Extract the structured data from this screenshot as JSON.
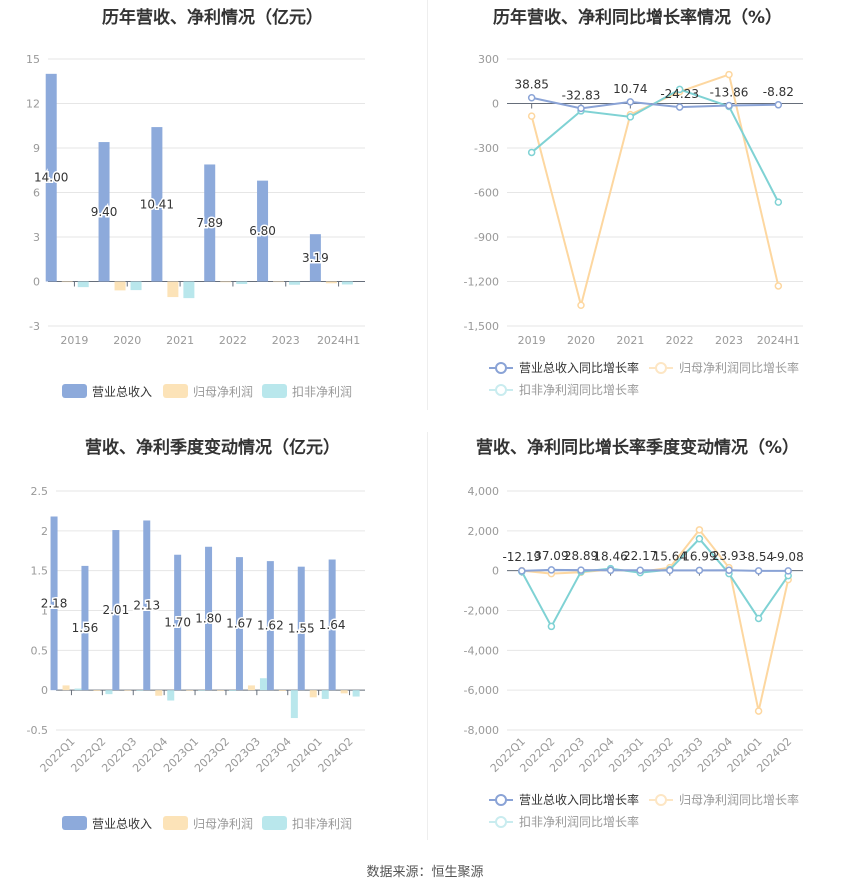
{
  "source": "数据来源：恒生聚源",
  "colors": {
    "revenue": "#8daadb",
    "net_profit": "#fce3b8",
    "deducted_profit": "#b9e7ec",
    "revenue_line": "#8aa3d6",
    "net_profit_line": "#fdd7a0",
    "deducted_profit_line": "#7fd2d4",
    "grid": "#e6e6e6",
    "axis_text": "#999999",
    "title": "#333333"
  },
  "chart_data": [
    {
      "id": "annual_amount",
      "type": "bar",
      "title": "历年营收、净利情况（亿元）",
      "xlabel": "",
      "ylabel": "",
      "categories": [
        "2019",
        "2020",
        "2021",
        "2022",
        "2023",
        "2024H1"
      ],
      "yticks": [
        "15",
        "12",
        "9",
        "6",
        "3",
        "0",
        "-3"
      ],
      "ylim": [
        -3,
        15
      ],
      "grid": true,
      "legend_position": "bottom",
      "series": [
        {
          "name": "营业总收入",
          "values": [
            14.0,
            9.4,
            10.41,
            7.89,
            6.8,
            3.19
          ],
          "labels": [
            "14.00",
            "9.40",
            "10.41",
            "7.89",
            "6.80",
            "3.19"
          ]
        },
        {
          "name": "归母净利润",
          "values": [
            -0.02,
            -0.6,
            -1.05,
            -0.05,
            -0.04,
            -0.12
          ]
        },
        {
          "name": "扣非净利润",
          "values": [
            -0.38,
            -0.58,
            -1.12,
            -0.17,
            -0.22,
            -0.2
          ]
        }
      ]
    },
    {
      "id": "annual_growth",
      "type": "line",
      "title": "历年营收、净利同比增长率情况（%）",
      "xlabel": "",
      "ylabel": "",
      "categories": [
        "2019",
        "2020",
        "2021",
        "2022",
        "2023",
        "2024H1"
      ],
      "yticks": [
        "300",
        "0",
        "-300",
        "-600",
        "-900",
        "-1,200",
        "-1,500"
      ],
      "ylim": [
        -1500,
        300
      ],
      "grid": true,
      "legend_position": "bottom",
      "series": [
        {
          "name": "营业总收入同比增长率",
          "values": [
            38.85,
            -32.83,
            10.74,
            -24.23,
            -13.86,
            -8.82
          ],
          "labels": [
            "38.85",
            "-32.83",
            "10.74",
            "-24.23",
            "-13.86",
            "-8.82"
          ]
        },
        {
          "name": "归母净利润同比增长率",
          "values": [
            -85,
            -1360,
            -75,
            80,
            195,
            -1230
          ]
        },
        {
          "name": "扣非净利润同比增长率",
          "values": [
            -330,
            -50,
            -90,
            95,
            -20,
            -665
          ]
        }
      ]
    },
    {
      "id": "quarterly_amount",
      "type": "bar",
      "title": "营收、净利季度变动情况（亿元）",
      "xlabel": "",
      "ylabel": "",
      "categories": [
        "2022Q1",
        "2022Q2",
        "2022Q3",
        "2022Q4",
        "2023Q1",
        "2023Q2",
        "2023Q3",
        "2023Q4",
        "2024Q1",
        "2024Q2"
      ],
      "yticks": [
        "2.5",
        "2",
        "1.5",
        "1",
        "0.5",
        "0",
        "-0.5"
      ],
      "ylim": [
        -0.5,
        2.5
      ],
      "grid": true,
      "legend_position": "bottom",
      "series": [
        {
          "name": "营业总收入",
          "values": [
            2.18,
            1.56,
            2.01,
            2.13,
            1.7,
            1.8,
            1.67,
            1.62,
            1.55,
            1.64
          ],
          "labels": [
            "2.18",
            "1.56",
            "2.01",
            "2.13",
            "1.70",
            "1.80",
            "1.67",
            "1.62",
            "1.55",
            "1.64"
          ]
        },
        {
          "name": "归母净利润",
          "values": [
            0.06,
            -0.01,
            0.0,
            -0.07,
            0.0,
            0.0,
            0.06,
            -0.01,
            -0.09,
            -0.04
          ]
        },
        {
          "name": "扣非净利润",
          "values": [
            0.02,
            -0.05,
            0.0,
            -0.13,
            0.0,
            -0.01,
            0.15,
            -0.35,
            -0.11,
            -0.08
          ]
        }
      ]
    },
    {
      "id": "quarterly_growth",
      "type": "line",
      "title": "营收、净利同比增长率季度变动情况（%）",
      "xlabel": "",
      "ylabel": "",
      "categories": [
        "2022Q1",
        "2022Q2",
        "2022Q3",
        "2022Q4",
        "2023Q1",
        "2023Q2",
        "2023Q3",
        "2023Q4",
        "2024Q1",
        "2024Q2"
      ],
      "yticks": [
        "4,000",
        "2,000",
        "0",
        "-2,000",
        "-4,000",
        "-6,000",
        "-8,000"
      ],
      "ylim": [
        -8000,
        4000
      ],
      "grid": true,
      "legend_position": "bottom",
      "series": [
        {
          "name": "营业总收入同比增长率",
          "values": [
            -12.19,
            37.09,
            28.89,
            18.46,
            22.17,
            15.64,
            16.99,
            23.93,
            -8.54,
            -9.08
          ],
          "labels": [
            "-12.19",
            "37.09",
            "28.89",
            "18.46",
            "22.17",
            "15.64",
            "16.99",
            "23.93",
            "-8.54",
            "-9.08"
          ]
        },
        {
          "name": "归母净利润同比增长率",
          "values": [
            0,
            -150,
            -80,
            60,
            -60,
            150,
            2050,
            150,
            -7050,
            -450
          ]
        },
        {
          "name": "扣非净利润同比增长率",
          "values": [
            -50,
            -2800,
            -50,
            100,
            -100,
            50,
            1600,
            -150,
            -2400,
            -250
          ]
        }
      ]
    }
  ]
}
